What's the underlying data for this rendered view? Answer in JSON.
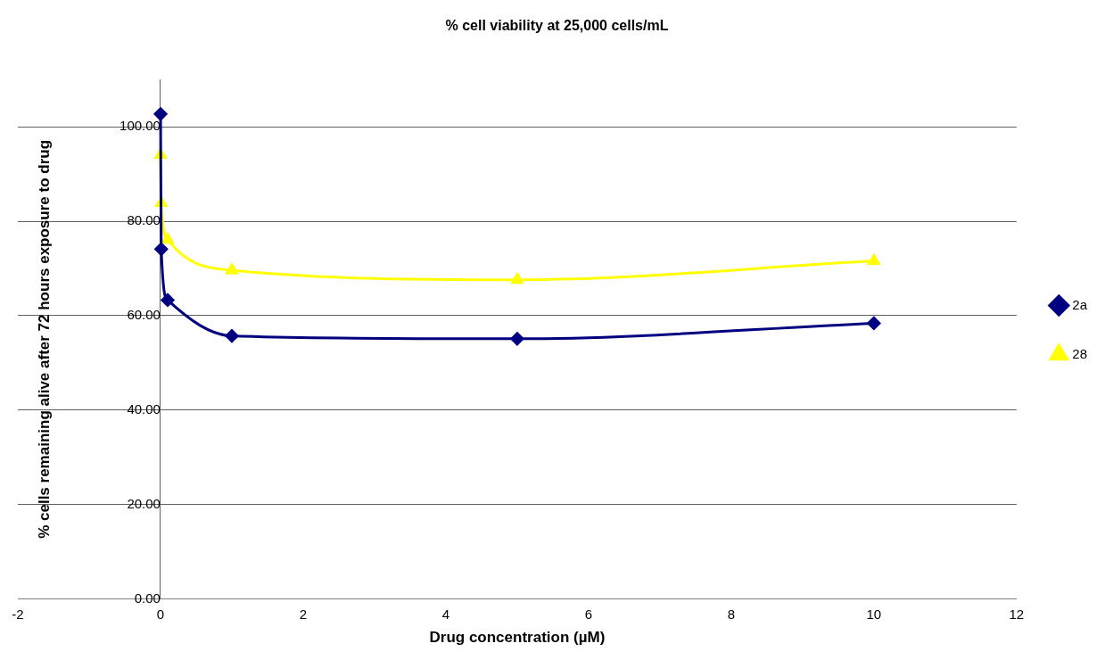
{
  "chart_data": {
    "type": "line",
    "title": "% cell viability at 25,000 cells/mL",
    "xlabel": "Drug concentration (µM)",
    "ylabel": "% cells remaining alive after 72 hours exposure to drug",
    "series": [
      {
        "name": "2a",
        "color": "#000080",
        "marker": "diamond",
        "x": [
          0.001,
          0.01,
          0.1,
          1,
          5,
          10
        ],
        "values": [
          102.7,
          74.1,
          63.3,
          55.7,
          55.1,
          58.4
        ]
      },
      {
        "name": "28",
        "color": "#ffff00",
        "marker": "triangle",
        "x": [
          0.001,
          0.01,
          0.1,
          1,
          5,
          10
        ],
        "values": [
          94.1,
          83.9,
          76.1,
          69.6,
          67.6,
          71.6
        ]
      }
    ],
    "xlim": [
      -2,
      12
    ],
    "xticks": [
      -2,
      0,
      2,
      4,
      6,
      8,
      10,
      12
    ],
    "ylim": [
      0,
      110
    ],
    "yticks": [
      {
        "value": 0,
        "label": "0.00"
      },
      {
        "value": 20,
        "label": "20.00"
      },
      {
        "value": 40,
        "label": "40.00"
      },
      {
        "value": 60,
        "label": "60.00"
      },
      {
        "value": 80,
        "label": "80.00"
      },
      {
        "value": 100,
        "label": "100.00"
      }
    ],
    "grid": "y",
    "legend": "right"
  }
}
